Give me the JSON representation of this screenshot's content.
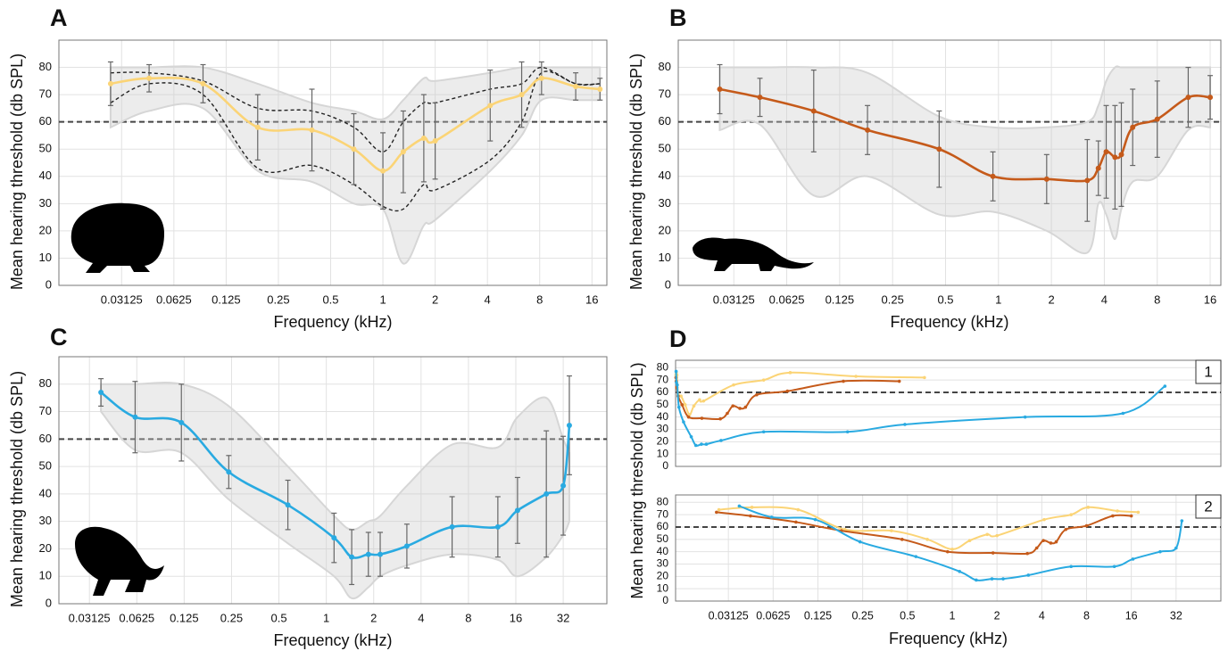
{
  "chart_data": [
    {
      "type": "line",
      "label": "A",
      "xlabel": "Frequency (kHz)",
      "ylabel": "Mean hearing threshold (db SPL)",
      "xscale": "log",
      "xlim": [
        0.0136,
        19.5
      ],
      "ylim": [
        0,
        90
      ],
      "xticks": [
        0.03125,
        0.0625,
        0.125,
        0.25,
        0.5,
        1,
        2,
        4,
        8,
        16
      ],
      "yticks": [
        0,
        10,
        20,
        30,
        40,
        50,
        60,
        70,
        80
      ],
      "grid": true,
      "reference_line": 60,
      "x": [
        0.027,
        0.045,
        0.092,
        0.19,
        0.39,
        0.68,
        1,
        1.31,
        1.72,
        2,
        4.15,
        6.3,
        8.2,
        12.9,
        17.8
      ],
      "series": [
        {
          "color": "#fbd476",
          "values": [
            74,
            76,
            74,
            58,
            57,
            50,
            42,
            49,
            54,
            53,
            66,
            70,
            76,
            73,
            72
          ],
          "errors": [
            8,
            5,
            7,
            12,
            15,
            13,
            14,
            15,
            16,
            14,
            13,
            12,
            6,
            5,
            4
          ]
        }
      ],
      "range": {
        "upper": [
          80,
          80,
          80,
          74,
          67,
          64,
          61,
          68,
          76,
          75,
          78,
          80,
          80,
          80,
          80
        ],
        "lower": [
          58,
          64,
          65,
          42,
          38,
          30,
          28,
          8,
          22,
          24,
          42,
          55,
          68,
          68,
          68
        ]
      },
      "dashed": [
        [
          78,
          78,
          75,
          65,
          64,
          58,
          49,
          60,
          67,
          67,
          72,
          74,
          80,
          74,
          74
        ],
        [
          67,
          74,
          70,
          43,
          44,
          37,
          29,
          28,
          37,
          35,
          46,
          60,
          78,
          74,
          74
        ]
      ]
    },
    {
      "type": "line",
      "label": "B",
      "xlabel": "Frequency (kHz)",
      "ylabel": "Mean hearing threshold (db SPL)",
      "xscale": "log",
      "xlim": [
        0.0151,
        18.4
      ],
      "ylim": [
        0,
        90
      ],
      "xticks": [
        0.03125,
        0.0625,
        0.125,
        0.25,
        0.5,
        1,
        2,
        4,
        8,
        16
      ],
      "yticks": [
        0,
        10,
        20,
        30,
        40,
        50,
        60,
        70,
        80
      ],
      "grid": true,
      "reference_line": 60,
      "x": [
        0.026,
        0.044,
        0.089,
        0.18,
        0.46,
        0.93,
        1.88,
        3.2,
        3.7,
        4.1,
        4.6,
        5.0,
        5.8,
        8,
        12,
        16
      ],
      "series": [
        {
          "color": "#c55a1a",
          "values": [
            72,
            69,
            64,
            57,
            50,
            40,
            39,
            38.5,
            43,
            49,
            47,
            48,
            58,
            61,
            69,
            69
          ],
          "errors": [
            9,
            7,
            15,
            9,
            14,
            9,
            9,
            15,
            10,
            17,
            19,
            19,
            14,
            14,
            11,
            8
          ]
        }
      ],
      "range": {
        "upper": [
          80,
          80,
          80,
          78,
          62,
          58,
          58,
          60,
          66,
          75,
          80,
          80,
          80,
          80,
          80,
          80
        ],
        "lower": [
          57,
          59,
          33,
          40,
          26,
          27,
          20,
          12,
          30,
          26,
          17,
          28,
          38,
          40,
          57,
          58
        ]
      }
    },
    {
      "type": "line",
      "label": "C",
      "xlabel": "Frequency (kHz)",
      "ylabel": "Mean hearing threshold (db SPL)",
      "xscale": "log",
      "xlim": [
        0.02,
        60.6
      ],
      "ylim": [
        0,
        90
      ],
      "xticks": [
        0.03125,
        0.0625,
        0.125,
        0.25,
        0.5,
        1,
        2,
        4,
        8,
        16,
        32
      ],
      "yticks": [
        0,
        10,
        20,
        30,
        40,
        50,
        60,
        70,
        80
      ],
      "grid": true,
      "reference_line": 60,
      "x": [
        0.037,
        0.061,
        0.12,
        0.24,
        0.57,
        1.12,
        1.45,
        1.85,
        2.2,
        3.25,
        6.3,
        12.3,
        16.4,
        25,
        32,
        35
      ],
      "series": [
        {
          "color": "#29aae1",
          "values": [
            77,
            68,
            66,
            48,
            36,
            24,
            17,
            18,
            18,
            21,
            28,
            28,
            34,
            40,
            43,
            65
          ],
          "errors": [
            5,
            13,
            14,
            6,
            9,
            9,
            10,
            8,
            8,
            8,
            11,
            11,
            12,
            23,
            18,
            18
          ]
        }
      ],
      "range": {
        "upper": [
          80,
          80,
          80,
          72,
          50,
          32,
          27,
          30,
          32,
          43,
          58,
          57,
          68,
          75,
          60,
          55
        ],
        "lower": [
          70,
          56,
          55,
          38,
          22,
          10,
          2,
          6,
          10,
          14,
          18,
          16,
          10,
          17,
          25,
          30
        ]
      }
    },
    {
      "type": "line",
      "label": "D",
      "xlabel": "Frequency (kHz)",
      "ylabel": "Mean hearing threshold (db SPL)",
      "ylim": [
        0,
        86
      ],
      "yticks": [
        0,
        10,
        20,
        30,
        40,
        50,
        60,
        70,
        80
      ],
      "grid": true,
      "reference_line": 60,
      "subplots": [
        {
          "label": "1",
          "xscale": "linear",
          "xlim": [
            0,
            39
          ]
        },
        {
          "label": "2",
          "xscale": "log",
          "xlim": [
            0.0138,
            64
          ],
          "xticks": [
            0.03125,
            0.0625,
            0.125,
            0.25,
            0.5,
            1,
            2,
            4,
            8,
            16,
            32
          ]
        }
      ]
    }
  ]
}
